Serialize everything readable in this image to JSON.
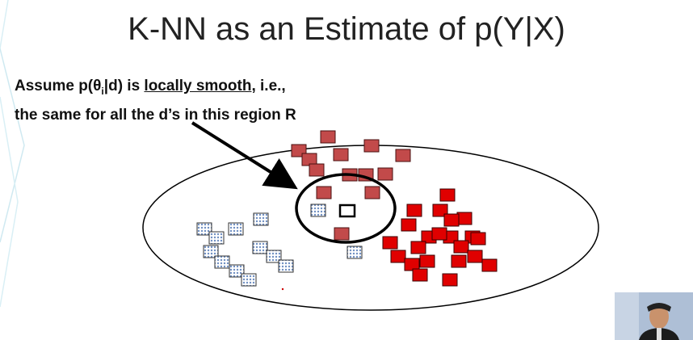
{
  "slide": {
    "title": "K-NN as an Estimate of p(Y|X)",
    "assumption": {
      "prefix": "Assume p(",
      "theta": "θ",
      "theta_sub": "i",
      "mid": "|d) is ",
      "emphasis": "locally smooth",
      "suffix": ", i.e.,",
      "line2": "the same for all the d’s in this region R"
    }
  },
  "colors": {
    "red_class": "#e00000",
    "dark_red_class": "#c24a4a",
    "blue_class": "#a9c4e8",
    "accent_teal": "#c8e6ee"
  },
  "icons": {
    "webcam": "person-video-thumbnail"
  }
}
